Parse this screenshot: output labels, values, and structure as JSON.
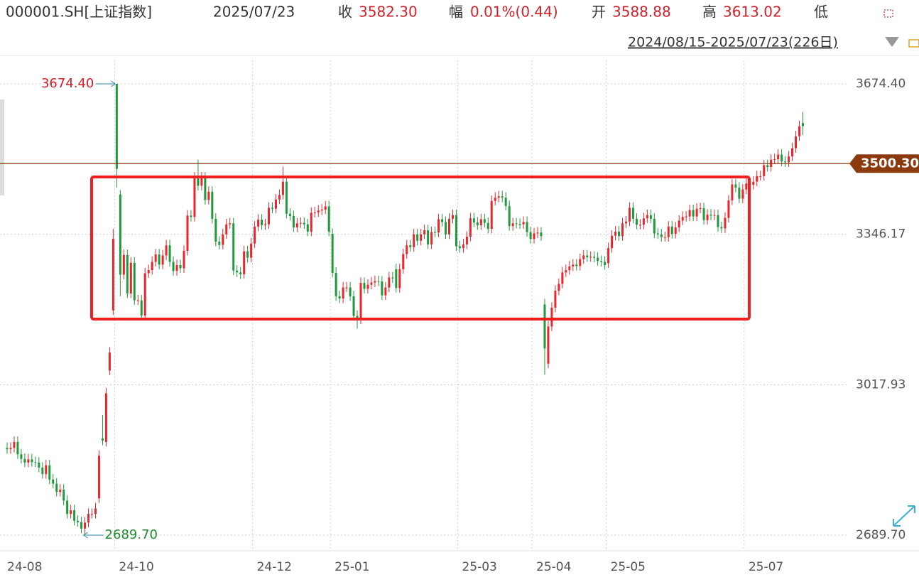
{
  "header": {
    "symbol": "000001.SH[上证指数]",
    "date": "2025/07/23",
    "close_label": "收",
    "close": "3582.30",
    "change_label": "幅",
    "change": "0.01%(0.44)",
    "open_label": "开",
    "open": "3588.88",
    "high_label": "高",
    "high": "3613.02",
    "low_label": "低",
    "range": "2024/08/15-2025/07/23(226日)"
  },
  "chart_data": {
    "type": "candlestick",
    "up_color": "#e8262d",
    "down_color": "#1e9a3c",
    "grid": true,
    "categories": [
      "24-08",
      null,
      null,
      null,
      null,
      null,
      null,
      null,
      null,
      null,
      null,
      null,
      null,
      null,
      null,
      null,
      null,
      null,
      null,
      null,
      null,
      null,
      null,
      null,
      null,
      null,
      null,
      null,
      null,
      null,
      null,
      "24-10",
      null,
      null,
      null,
      null,
      null,
      null,
      null,
      null,
      null,
      null,
      null,
      null,
      null,
      null,
      null,
      null,
      null,
      null,
      null,
      null,
      null,
      null,
      null,
      null,
      null,
      null,
      null,
      null,
      null,
      null,
      null,
      null,
      null,
      null,
      null,
      null,
      null,
      null,
      "24-12",
      null,
      null,
      null,
      null,
      null,
      null,
      null,
      null,
      null,
      null,
      null,
      null,
      null,
      null,
      null,
      null,
      null,
      null,
      null,
      null,
      null,
      "25-01",
      null,
      null,
      null,
      null,
      null,
      null,
      null,
      null,
      null,
      null,
      null,
      null,
      null,
      null,
      null,
      null,
      null,
      null,
      null,
      null,
      null,
      null,
      null,
      null,
      null,
      null,
      null,
      null,
      null,
      null,
      null,
      null,
      null,
      null,
      null,
      "25-03",
      null,
      null,
      null,
      null,
      null,
      null,
      null,
      null,
      null,
      null,
      null,
      null,
      null,
      null,
      null,
      null,
      null,
      null,
      null,
      null,
      "25-04",
      null,
      null,
      null,
      null,
      null,
      null,
      null,
      null,
      null,
      null,
      null,
      null,
      null,
      null,
      null,
      null,
      null,
      null,
      null,
      null,
      "25-05",
      null,
      null,
      null,
      null,
      null,
      null,
      null,
      null,
      null,
      null,
      null,
      null,
      null,
      null,
      null,
      null,
      null,
      null,
      null,
      null,
      null,
      null,
      null,
      null,
      null,
      null,
      null,
      null,
      null,
      null,
      null,
      null,
      null,
      null,
      null,
      null,
      null,
      null,
      "25-07",
      null,
      null,
      null,
      null,
      null,
      null,
      null,
      null,
      null,
      null,
      null,
      null,
      null,
      null,
      null,
      null
    ],
    "open": [
      2880,
      2877,
      2880,
      2893,
      2866,
      2856,
      2848,
      2855,
      2849,
      2848,
      2837,
      2823,
      2842,
      2811,
      2802,
      2784,
      2789,
      2765,
      2736,
      2744,
      2721,
      2718,
      2704,
      2717,
      2736,
      2736,
      2770,
      2901,
      2893,
      3049,
      3180,
      3674.4,
      3433,
      3258,
      3301,
      3217,
      3284,
      3202,
      3202,
      3169,
      3261,
      3268,
      3286,
      3302,
      3280,
      3300,
      3322,
      3286,
      3266,
      3279,
      3272,
      3310,
      3387,
      3384,
      3470,
      3452,
      3470,
      3421,
      3439,
      3380,
      3330,
      3323,
      3346,
      3368,
      3370,
      3267,
      3263,
      3259,
      3309,
      3295,
      3326,
      3363,
      3378,
      3366,
      3368,
      3404,
      3402,
      3422,
      3432,
      3461,
      3391,
      3386,
      3361,
      3370,
      3371,
      3368,
      3352,
      3393,
      3394,
      3398,
      3400,
      3407,
      3347,
      3262,
      3211,
      3206,
      3230,
      3230,
      3211,
      3168,
      3160,
      3240,
      3227,
      3236,
      3241,
      3244,
      3243,
      3213,
      3230,
      3252,
      3270,
      3229,
      3270,
      3303,
      3322,
      3318,
      3346,
      3332,
      3346,
      3355,
      3324,
      3351,
      3350,
      3379,
      3373,
      3346,
      3380,
      3388,
      3320,
      3316,
      3324,
      3341,
      3381,
      3372,
      3366,
      3379,
      3371,
      3358,
      3419,
      3426,
      3429,
      3426,
      3408,
      3364,
      3370,
      3369,
      3368,
      3373,
      3351,
      3336,
      3348,
      3350,
      3193,
      3064,
      3145,
      3186,
      3223,
      3238,
      3263,
      3268,
      3276,
      3280,
      3277,
      3292,
      3300,
      3296,
      3297,
      3295,
      3288,
      3286,
      3283,
      3316,
      3343,
      3352,
      3342,
      3370,
      3374,
      3404,
      3380,
      3367,
      3367,
      3381,
      3388,
      3380,
      3348,
      3346,
      3340,
      3340,
      3363,
      3347,
      3361,
      3376,
      3384,
      3385,
      3399,
      3385,
      3402,
      3403,
      3377,
      3389,
      3387,
      3388,
      3362,
      3359,
      3382,
      3420,
      3455,
      3448,
      3424,
      3444,
      3457,
      3454,
      3461,
      3473,
      3473,
      3497,
      3493,
      3509,
      3510,
      3520,
      3505,
      3503,
      3516,
      3534,
      3560,
      3588.88
    ],
    "high": [
      2892,
      2892,
      2905,
      2905,
      2878,
      2868,
      2867,
      2867,
      2861,
      2860,
      2849,
      2854,
      2854,
      2823,
      2814,
      2801,
      2801,
      2777,
      2756,
      2756,
      2733,
      2730,
      2729,
      2748,
      2748,
      2760,
      2875,
      2952,
      3011,
      3100,
      3358,
      3674.4,
      3443,
      3313,
      3313,
      3296,
      3296,
      3214,
      3214,
      3273,
      3280,
      3298,
      3314,
      3314,
      3312,
      3334,
      3334,
      3298,
      3291,
      3291,
      3322,
      3399,
      3399,
      3482,
      3509,
      3482,
      3482,
      3451,
      3451,
      3392,
      3342,
      3358,
      3380,
      3382,
      3382,
      3279,
      3275,
      3321,
      3321,
      3338,
      3375,
      3390,
      3390,
      3380,
      3416,
      3416,
      3434,
      3444,
      3494,
      3473,
      3403,
      3398,
      3382,
      3383,
      3383,
      3380,
      3405,
      3406,
      3410,
      3412,
      3419,
      3419,
      3359,
      3274,
      3223,
      3242,
      3242,
      3242,
      3223,
      3180,
      3252,
      3252,
      3248,
      3253,
      3256,
      3256,
      3255,
      3242,
      3264,
      3264,
      3282,
      3282,
      3315,
      3334,
      3334,
      3358,
      3358,
      3358,
      3367,
      3367,
      3363,
      3363,
      3391,
      3391,
      3385,
      3392,
      3400,
      3400,
      3332,
      3336,
      3353,
      3393,
      3393,
      3384,
      3391,
      3391,
      3383,
      3431,
      3438,
      3441,
      3441,
      3438,
      3420,
      3382,
      3382,
      3381,
      3385,
      3385,
      3363,
      3360,
      3362,
      3362,
      3205,
      3157,
      3198,
      3235,
      3250,
      3275,
      3280,
      3288,
      3292,
      3292,
      3304,
      3312,
      3312,
      3309,
      3309,
      3307,
      3300,
      3298,
      3328,
      3355,
      3364,
      3364,
      3382,
      3386,
      3416,
      3416,
      3392,
      3379,
      3393,
      3400,
      3400,
      3392,
      3360,
      3358,
      3352,
      3375,
      3375,
      3373,
      3388,
      3396,
      3397,
      3411,
      3411,
      3414,
      3415,
      3415,
      3401,
      3401,
      3400,
      3400,
      3374,
      3394,
      3432,
      3467,
      3467,
      3460,
      3456,
      3469,
      3469,
      3473,
      3485,
      3485,
      3509,
      3509,
      3521,
      3522,
      3532,
      3532,
      3517,
      3528,
      3546,
      3572,
      3594,
      3613.02
    ],
    "low": [
      2867,
      2867,
      2870,
      2856,
      2846,
      2838,
      2838,
      2839,
      2838,
      2827,
      2813,
      2813,
      2801,
      2792,
      2774,
      2774,
      2755,
      2726,
      2726,
      2711,
      2708,
      2694,
      2689.7,
      2707,
      2726,
      2726,
      2760,
      2886,
      2883,
      3039,
      3170,
      3448,
      3211,
      3248,
      3207,
      3207,
      3192,
      3192,
      3159,
      3159,
      3251,
      3258,
      3276,
      3270,
      3270,
      3290,
      3276,
      3256,
      3256,
      3262,
      3262,
      3300,
      3374,
      3374,
      3442,
      3442,
      3411,
      3411,
      3370,
      3320,
      3313,
      3313,
      3336,
      3358,
      3257,
      3253,
      3249,
      3249,
      3285,
      3285,
      3316,
      3353,
      3356,
      3356,
      3358,
      3392,
      3392,
      3412,
      3422,
      3381,
      3376,
      3351,
      3351,
      3360,
      3358,
      3342,
      3342,
      3383,
      3384,
      3388,
      3390,
      3342,
      3252,
      3201,
      3196,
      3196,
      3220,
      3201,
      3158,
      3140,
      3150,
      3217,
      3217,
      3226,
      3231,
      3233,
      3203,
      3203,
      3220,
      3240,
      3219,
      3219,
      3260,
      3293,
      3308,
      3308,
      3322,
      3322,
      3336,
      3314,
      3314,
      3340,
      3340,
      3363,
      3336,
      3336,
      3370,
      3310,
      3306,
      3306,
      3314,
      3331,
      3362,
      3356,
      3356,
      3361,
      3348,
      3348,
      3409,
      3416,
      3416,
      3398,
      3354,
      3354,
      3359,
      3358,
      3358,
      3341,
      3326,
      3326,
      3338,
      3332,
      3040,
      3054,
      3135,
      3176,
      3213,
      3228,
      3253,
      3258,
      3266,
      3267,
      3267,
      3282,
      3286,
      3286,
      3285,
      3278,
      3276,
      3269,
      3273,
      3306,
      3333,
      3332,
      3332,
      3360,
      3364,
      3370,
      3357,
      3357,
      3357,
      3371,
      3370,
      3338,
      3336,
      3330,
      3330,
      3330,
      3337,
      3337,
      3351,
      3366,
      3374,
      3375,
      3375,
      3375,
      3392,
      3367,
      3367,
      3377,
      3377,
      3352,
      3349,
      3349,
      3372,
      3410,
      3438,
      3414,
      3414,
      3434,
      3444,
      3444,
      3451,
      3463,
      3463,
      3483,
      3483,
      3499,
      3500,
      3495,
      3493,
      3493,
      3506,
      3524,
      3550,
      3563
    ],
    "close": [
      2877,
      2880,
      2893,
      2866,
      2856,
      2848,
      2855,
      2849,
      2848,
      2837,
      2823,
      2842,
      2811,
      2802,
      2784,
      2789,
      2765,
      2736,
      2744,
      2721,
      2718,
      2704,
      2717,
      2736,
      2736,
      2748,
      2863,
      2896,
      2999,
      3088,
      3336,
      3489,
      3258,
      3301,
      3217,
      3284,
      3202,
      3202,
      3169,
      3261,
      3268,
      3286,
      3302,
      3280,
      3300,
      3322,
      3286,
      3266,
      3279,
      3272,
      3310,
      3387,
      3384,
      3470,
      3452,
      3470,
      3421,
      3439,
      3380,
      3330,
      3323,
      3346,
      3368,
      3370,
      3267,
      3263,
      3259,
      3309,
      3295,
      3326,
      3363,
      3378,
      3366,
      3368,
      3404,
      3402,
      3422,
      3432,
      3461,
      3391,
      3386,
      3361,
      3370,
      3371,
      3368,
      3352,
      3393,
      3394,
      3398,
      3400,
      3407,
      3352,
      3262,
      3211,
      3206,
      3230,
      3230,
      3211,
      3168,
      3160,
      3240,
      3227,
      3236,
      3241,
      3244,
      3243,
      3213,
      3230,
      3252,
      3250,
      3229,
      3270,
      3303,
      3322,
      3318,
      3346,
      3332,
      3346,
      3355,
      3324,
      3351,
      3350,
      3379,
      3373,
      3346,
      3380,
      3388,
      3320,
      3316,
      3324,
      3341,
      3381,
      3372,
      3366,
      3379,
      3371,
      3358,
      3419,
      3426,
      3429,
      3426,
      3408,
      3364,
      3370,
      3369,
      3368,
      3373,
      3351,
      3336,
      3348,
      3350,
      3342,
      3097,
      3145,
      3186,
      3223,
      3238,
      3263,
      3268,
      3276,
      3280,
      3277,
      3292,
      3300,
      3296,
      3297,
      3295,
      3288,
      3286,
      3279,
      3316,
      3343,
      3352,
      3342,
      3370,
      3374,
      3404,
      3380,
      3367,
      3367,
      3381,
      3388,
      3380,
      3348,
      3346,
      3340,
      3340,
      3363,
      3347,
      3361,
      3376,
      3384,
      3385,
      3399,
      3385,
      3402,
      3403,
      3377,
      3389,
      3387,
      3388,
      3362,
      3359,
      3382,
      3420,
      3455,
      3448,
      3424,
      3444,
      3457,
      3454,
      3461,
      3473,
      3473,
      3497,
      3493,
      3509,
      3510,
      3520,
      3505,
      3503,
      3516,
      3534,
      3560,
      3581.86,
      3582.3
    ],
    "ylim": [
      2655.6,
      3725.6
    ],
    "yticks": [
      {
        "value": 3674.4,
        "label": "3674.40"
      },
      {
        "value": 3346.17,
        "label": "3346.17"
      },
      {
        "value": 3017.93,
        "label": "3017.93"
      },
      {
        "value": 2689.7,
        "label": "2689.70"
      }
    ],
    "reference_line": {
      "value": 3500.3,
      "label": "3500.30",
      "color": "#8b3a0e"
    },
    "annotations": [
      {
        "value": 3674.4,
        "label": "3674.40",
        "color": "#d0202a"
      },
      {
        "value": 2689.7,
        "label": "2689.70",
        "color": "#1e8a30"
      }
    ]
  }
}
